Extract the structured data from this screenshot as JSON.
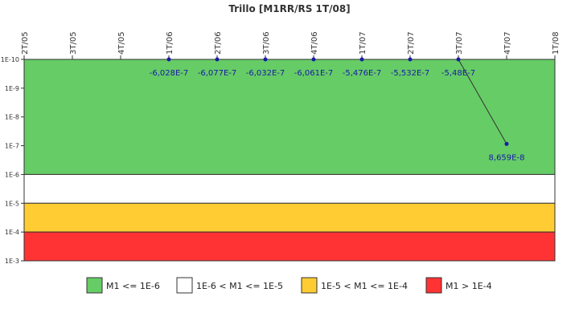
{
  "chart_data": {
    "type": "line",
    "title": "Trillo [M1RR/RS 1T/08]",
    "x_categories": [
      "2T/05",
      "3T/05",
      "4T/05",
      "1T/06",
      "2T/06",
      "3T/06",
      "4T/06",
      "1T/07",
      "2T/07",
      "3T/07",
      "4T/07",
      "1T/08"
    ],
    "y_scale": "log",
    "y_axis_inverted": true,
    "y_ticks": [
      "1E-10",
      "1E-9",
      "1E-8",
      "1E-7",
      "1E-6",
      "1E-5",
      "1E-4",
      "1E-3"
    ],
    "y_range_exponents": [
      -10,
      -3
    ],
    "grid": false,
    "bands": [
      {
        "label": "M1 <= 1E-6",
        "from_exp": -10,
        "to_exp": -6,
        "color": "#66cc66"
      },
      {
        "label": "1E-6 < M1 <= 1E-5",
        "from_exp": -6,
        "to_exp": -5,
        "color": "#ffffff"
      },
      {
        "label": "1E-5 < M1 <= 1E-4",
        "from_exp": -5,
        "to_exp": -4,
        "color": "#ffcc33"
      },
      {
        "label": "M1 > 1E-4",
        "from_exp": -4,
        "to_exp": -3,
        "color": "#ff3333"
      }
    ],
    "series": [
      {
        "points": [
          {
            "x": "1T/06",
            "label": "-6,028E-7",
            "y_plot": 1e-10
          },
          {
            "x": "2T/06",
            "label": "-6,077E-7",
            "y_plot": 1e-10
          },
          {
            "x": "3T/06",
            "label": "-6,032E-7",
            "y_plot": 1e-10
          },
          {
            "x": "4T/06",
            "label": "-6,061E-7",
            "y_plot": 1e-10
          },
          {
            "x": "1T/07",
            "label": "-5,476E-7",
            "y_plot": 1e-10
          },
          {
            "x": "2T/07",
            "label": "-5,532E-7",
            "y_plot": 1e-10
          },
          {
            "x": "3T/07",
            "label": "-5,48E-7",
            "y_plot": 1e-10
          },
          {
            "x": "4T/07",
            "label": "8,659E-8",
            "y_plot": 8.659e-08
          }
        ]
      }
    ],
    "legend_position": "bottom",
    "colors": {
      "line": "#333333",
      "marker": "#1a1aa6",
      "label": "#1a1aa6"
    }
  }
}
